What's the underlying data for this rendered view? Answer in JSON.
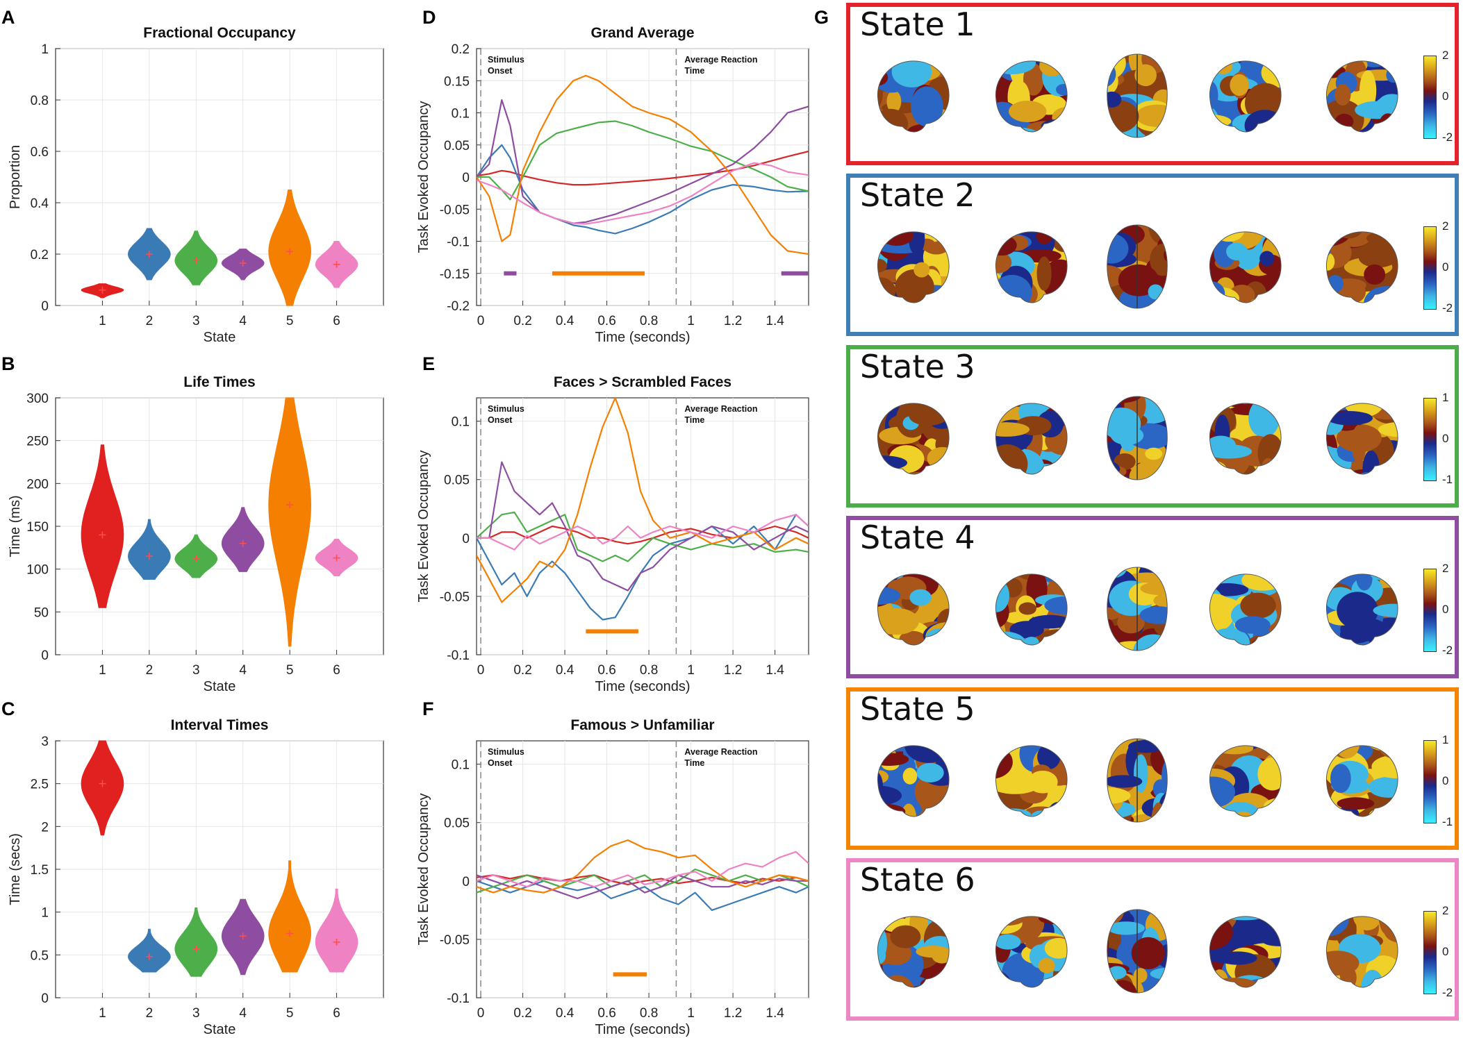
{
  "panel_letters": [
    "A",
    "B",
    "C",
    "D",
    "E",
    "F",
    "G"
  ],
  "chart_data": [
    {
      "id": "A",
      "type": "violin",
      "title": "Fractional Occupancy",
      "xlabel": "State",
      "ylabel": "Proportion",
      "categories": [
        "1",
        "2",
        "3",
        "4",
        "5",
        "6"
      ],
      "ylim": [
        0,
        1
      ],
      "yticks": [
        0,
        0.2,
        0.4,
        0.6,
        0.8,
        1
      ],
      "ytick_labels": [
        "0",
        "0.2",
        "0.4",
        "0.6",
        "0.8",
        "1"
      ],
      "medians": [
        0.06,
        0.2,
        0.175,
        0.165,
        0.21,
        0.16
      ],
      "ranges": [
        [
          0.03,
          0.085
        ],
        [
          0.1,
          0.3
        ],
        [
          0.08,
          0.29
        ],
        [
          0.1,
          0.22
        ],
        [
          0,
          0.45
        ],
        [
          0.07,
          0.25
        ]
      ]
    },
    {
      "id": "B",
      "type": "violin",
      "title": "Life Times",
      "xlabel": "State",
      "ylabel": "Time (ms)",
      "categories": [
        "1",
        "2",
        "3",
        "4",
        "5",
        "6"
      ],
      "ylim": [
        0,
        300
      ],
      "yticks": [
        0,
        50,
        100,
        150,
        200,
        250,
        300
      ],
      "ytick_labels": [
        "0",
        "50",
        "100",
        "150",
        "200",
        "250",
        "300"
      ],
      "medians": [
        140,
        115,
        112,
        130,
        175,
        113
      ],
      "ranges": [
        [
          55,
          245
        ],
        [
          88,
          158
        ],
        [
          90,
          140
        ],
        [
          97,
          172
        ],
        [
          10,
          300
        ],
        [
          92,
          135
        ]
      ]
    },
    {
      "id": "C",
      "type": "violin",
      "title": "Interval Times",
      "xlabel": "State",
      "ylabel": "Time (secs)",
      "categories": [
        "1",
        "2",
        "3",
        "4",
        "5",
        "6"
      ],
      "ylim": [
        0,
        3
      ],
      "yticks": [
        0,
        0.5,
        1,
        1.5,
        2,
        2.5,
        3
      ],
      "ytick_labels": [
        "0",
        "0.5",
        "1",
        "1.5",
        "2",
        "2.5",
        "3"
      ],
      "medians": [
        2.5,
        0.48,
        0.57,
        0.72,
        0.75,
        0.65
      ],
      "ranges": [
        [
          1.9,
          3
        ],
        [
          0.3,
          0.8
        ],
        [
          0.25,
          1.05
        ],
        [
          0.27,
          1.15
        ],
        [
          0.3,
          1.6
        ],
        [
          0.3,
          1.27
        ]
      ]
    },
    {
      "id": "D",
      "type": "line",
      "title": "Grand Average",
      "xlabel": "Time (seconds)",
      "ylabel": "Task Evoked Occupancy",
      "xlim": [
        -0.02,
        1.56
      ],
      "ylim": [
        -0.2,
        0.2
      ],
      "xticks": [
        0,
        0.2,
        0.4,
        0.6,
        0.8,
        1,
        1.2,
        1.4
      ],
      "xtick_labels": [
        "0",
        "0.2",
        "0.4",
        "0.6",
        "0.8",
        "1",
        "1.2",
        "1.4"
      ],
      "yticks": [
        -0.2,
        -0.15,
        -0.1,
        -0.05,
        0,
        0.05,
        0.1,
        0.15,
        0.2
      ],
      "ytick_labels": [
        "-0.2",
        "-0.15",
        "-0.1",
        "-0.05",
        "0",
        "0.05",
        "0.1",
        "0.15",
        "0.2"
      ],
      "vlines": [
        0,
        0.93
      ],
      "annotations": [
        "Stimulus Onset",
        "Average Reaction Time"
      ],
      "x": [
        -0.02,
        0.04,
        0.1,
        0.14,
        0.2,
        0.28,
        0.36,
        0.44,
        0.5,
        0.56,
        0.64,
        0.72,
        0.8,
        0.9,
        1.0,
        1.1,
        1.2,
        1.3,
        1.38,
        1.46,
        1.56
      ],
      "series": [
        {
          "name": "State 1",
          "color": "#d62728",
          "values": [
            0.002,
            0.005,
            0.01,
            0.008,
            0.002,
            -0.004,
            -0.009,
            -0.012,
            -0.012,
            -0.011,
            -0.009,
            -0.007,
            -0.005,
            -0.002,
            0.002,
            0.006,
            0.011,
            0.018,
            0.025,
            0.032,
            0.04
          ]
        },
        {
          "name": "State 2",
          "color": "#3a7bb5",
          "values": [
            0.0,
            0.03,
            0.05,
            0.03,
            -0.02,
            -0.055,
            -0.065,
            -0.075,
            -0.078,
            -0.083,
            -0.088,
            -0.08,
            -0.07,
            -0.055,
            -0.035,
            -0.02,
            -0.012,
            -0.015,
            -0.02,
            -0.023,
            -0.022
          ]
        },
        {
          "name": "State 3",
          "color": "#4daf4a",
          "values": [
            0.0,
            0.0,
            -0.02,
            -0.035,
            0.0,
            0.05,
            0.068,
            0.075,
            0.08,
            0.085,
            0.087,
            0.08,
            0.07,
            0.06,
            0.048,
            0.04,
            0.025,
            0.012,
            0.0,
            -0.015,
            -0.022
          ]
        },
        {
          "name": "State 4",
          "color": "#8e4da0",
          "values": [
            0.0,
            0.02,
            0.12,
            0.08,
            -0.03,
            -0.055,
            -0.065,
            -0.072,
            -0.07,
            -0.065,
            -0.058,
            -0.048,
            -0.038,
            -0.025,
            -0.01,
            0.005,
            0.02,
            0.045,
            0.07,
            0.1,
            0.11
          ]
        },
        {
          "name": "State 5",
          "color": "#f57f00",
          "values": [
            0.0,
            -0.03,
            -0.1,
            -0.09,
            0.01,
            0.07,
            0.12,
            0.15,
            0.158,
            0.15,
            0.13,
            0.11,
            0.1,
            0.09,
            0.07,
            0.04,
            0.0,
            -0.05,
            -0.09,
            -0.115,
            -0.12
          ]
        },
        {
          "name": "State 6",
          "color": "#ee82c3",
          "values": [
            -0.005,
            -0.012,
            -0.02,
            -0.028,
            -0.04,
            -0.055,
            -0.065,
            -0.072,
            -0.073,
            -0.07,
            -0.065,
            -0.06,
            -0.055,
            -0.045,
            -0.03,
            -0.01,
            0.01,
            0.022,
            0.018,
            0.008,
            0.003
          ]
        }
      ],
      "significance": [
        {
          "color": "#8e4da0",
          "from": 0.11,
          "to": 0.17,
          "y": -0.15
        },
        {
          "color": "#f57f00",
          "from": 0.34,
          "to": 0.78,
          "y": -0.15
        },
        {
          "color": "#8e4da0",
          "from": 1.43,
          "to": 1.56,
          "y": -0.15
        }
      ]
    },
    {
      "id": "E",
      "type": "line",
      "title": "Faces > Scrambled Faces",
      "xlabel": "Time (seconds)",
      "ylabel": "Task Evoked Occupancy",
      "xlim": [
        -0.02,
        1.56
      ],
      "ylim": [
        -0.1,
        0.12
      ],
      "xticks": [
        0,
        0.2,
        0.4,
        0.6,
        0.8,
        1,
        1.2,
        1.4
      ],
      "xtick_labels": [
        "0",
        "0.2",
        "0.4",
        "0.6",
        "0.8",
        "1",
        "1.2",
        "1.4"
      ],
      "yticks": [
        -0.1,
        -0.05,
        0,
        0.05,
        0.1
      ],
      "ytick_labels": [
        "-0.1",
        "-0.05",
        "0",
        "0.05",
        "0.1"
      ],
      "vlines": [
        0,
        0.93
      ],
      "annotations": [
        "Stimulus Onset",
        "Average Reaction Time"
      ],
      "x": [
        -0.02,
        0.04,
        0.1,
        0.16,
        0.22,
        0.28,
        0.34,
        0.4,
        0.46,
        0.52,
        0.58,
        0.64,
        0.7,
        0.76,
        0.82,
        0.9,
        1.0,
        1.1,
        1.2,
        1.3,
        1.4,
        1.5,
        1.56
      ],
      "series": [
        {
          "name": "State 1",
          "color": "#d62728",
          "values": [
            0.0,
            0.0,
            0.005,
            0.005,
            0.0,
            0.005,
            0.01,
            0.008,
            0.005,
            0.0,
            0.0,
            -0.003,
            -0.005,
            -0.003,
            0.0,
            0.005,
            0.008,
            0.003,
            0.0,
            0.005,
            0.01,
            0.005,
            0.0
          ]
        },
        {
          "name": "State 2",
          "color": "#3a7bb5",
          "values": [
            0.0,
            -0.02,
            -0.04,
            -0.03,
            -0.05,
            -0.03,
            -0.02,
            -0.03,
            -0.045,
            -0.06,
            -0.07,
            -0.068,
            -0.05,
            -0.03,
            -0.015,
            -0.005,
            0.0,
            0.01,
            -0.005,
            0.01,
            -0.01,
            0.02,
            0.01
          ]
        },
        {
          "name": "State 3",
          "color": "#4daf4a",
          "values": [
            0.0,
            0.01,
            0.02,
            0.022,
            0.005,
            0.01,
            0.015,
            0.02,
            -0.01,
            -0.015,
            -0.02,
            -0.015,
            -0.02,
            -0.01,
            0.0,
            -0.005,
            -0.01,
            -0.005,
            -0.008,
            -0.005,
            -0.012,
            -0.01,
            -0.012
          ]
        },
        {
          "name": "State 4",
          "color": "#8e4da0",
          "values": [
            0.0,
            0.0,
            0.065,
            0.04,
            0.03,
            0.02,
            0.03,
            0.01,
            -0.015,
            -0.02,
            -0.035,
            -0.04,
            -0.045,
            -0.03,
            -0.025,
            -0.01,
            0.0,
            0.01,
            0.005,
            -0.01,
            0.0,
            0.01,
            0.005
          ]
        },
        {
          "name": "State 5",
          "color": "#f57f00",
          "values": [
            -0.015,
            -0.035,
            -0.055,
            -0.045,
            -0.035,
            -0.02,
            -0.025,
            -0.01,
            0.02,
            0.06,
            0.095,
            0.12,
            0.09,
            0.04,
            0.015,
            0.0,
            0.005,
            -0.005,
            0.0,
            0.005,
            -0.01,
            0.0,
            -0.005
          ]
        },
        {
          "name": "State 6",
          "color": "#ee82c3",
          "values": [
            0.0,
            0.0,
            -0.005,
            -0.01,
            0.002,
            -0.005,
            0.0,
            0.005,
            0.01,
            0.005,
            -0.005,
            0.0,
            0.01,
            0.0,
            0.005,
            0.01,
            0.005,
            0.0,
            0.01,
            0.005,
            0.015,
            0.02,
            0.01
          ]
        }
      ],
      "significance": [
        {
          "color": "#f57f00",
          "from": 0.5,
          "to": 0.75,
          "y": -0.08
        }
      ]
    },
    {
      "id": "F",
      "type": "line",
      "title": "Famous > Unfamiliar",
      "xlabel": "Time (seconds)",
      "ylabel": "Task Evoked Occupancy",
      "xlim": [
        -0.02,
        1.56
      ],
      "ylim": [
        -0.1,
        0.12
      ],
      "xticks": [
        0,
        0.2,
        0.4,
        0.6,
        0.8,
        1,
        1.2,
        1.4
      ],
      "xtick_labels": [
        "0",
        "0.2",
        "0.4",
        "0.6",
        "0.8",
        "1",
        "1.2",
        "1.4"
      ],
      "yticks": [
        -0.1,
        -0.05,
        0,
        0.05,
        0.1
      ],
      "ytick_labels": [
        "-0.1",
        "-0.05",
        "0",
        "0.05",
        "0.1"
      ],
      "vlines": [
        0,
        0.93
      ],
      "annotations": [
        "Stimulus Onset",
        "Average Reaction Time"
      ],
      "x": [
        -0.02,
        0.06,
        0.14,
        0.22,
        0.3,
        0.38,
        0.46,
        0.54,
        0.62,
        0.7,
        0.78,
        0.86,
        0.94,
        1.02,
        1.1,
        1.18,
        1.26,
        1.34,
        1.42,
        1.5,
        1.56
      ],
      "series": [
        {
          "name": "State 1",
          "color": "#d62728",
          "values": [
            0.003,
            0.005,
            0.002,
            0.005,
            0.002,
            0.0,
            0.003,
            0.005,
            0.0,
            -0.003,
            0.0,
            0.002,
            -0.002,
            0.0,
            0.003,
            0.0,
            -0.002,
            0.002,
            0.0,
            0.003,
            0.0
          ]
        },
        {
          "name": "State 2",
          "color": "#3a7bb5",
          "values": [
            0.0,
            -0.005,
            -0.01,
            -0.005,
            0.0,
            -0.005,
            -0.008,
            -0.005,
            -0.015,
            -0.01,
            -0.005,
            -0.015,
            -0.02,
            -0.01,
            -0.025,
            -0.02,
            -0.015,
            -0.01,
            -0.005,
            -0.01,
            -0.005
          ]
        },
        {
          "name": "State 3",
          "color": "#4daf4a",
          "values": [
            -0.01,
            -0.005,
            0.0,
            0.005,
            0.0,
            -0.005,
            0.0,
            0.005,
            -0.005,
            0.0,
            0.005,
            -0.005,
            0.0,
            0.01,
            0.005,
            0.0,
            0.005,
            0.0,
            0.005,
            0.0,
            -0.005
          ]
        },
        {
          "name": "State 4",
          "color": "#8e4da0",
          "values": [
            0.005,
            0.0,
            -0.005,
            0.0,
            -0.005,
            -0.01,
            -0.015,
            -0.01,
            -0.005,
            0.0,
            -0.01,
            -0.005,
            0.005,
            0.0,
            -0.005,
            -0.005,
            0.0,
            -0.003,
            0.002,
            0.0,
            0.0
          ]
        },
        {
          "name": "State 5",
          "color": "#f57f00",
          "values": [
            -0.005,
            -0.01,
            -0.005,
            -0.008,
            -0.01,
            -0.005,
            0.005,
            0.02,
            0.03,
            0.035,
            0.028,
            0.025,
            0.02,
            0.022,
            0.01,
            0.0,
            -0.005,
            0.0,
            0.005,
            0.003,
            0.0
          ]
        },
        {
          "name": "State 6",
          "color": "#ee82c3",
          "values": [
            0.0,
            0.005,
            0.0,
            -0.005,
            0.003,
            0.0,
            0.0,
            -0.005,
            0.0,
            0.005,
            -0.003,
            0.0,
            0.005,
            0.008,
            0.0,
            0.01,
            0.015,
            0.012,
            0.02,
            0.025,
            0.015
          ]
        }
      ],
      "significance": [
        {
          "color": "#f57f00",
          "from": 0.63,
          "to": 0.79,
          "y": -0.08
        }
      ]
    }
  ],
  "states_panel": [
    {
      "title": "State 1",
      "color": "#e3232b",
      "colorbar": [
        "2",
        "0",
        "-2"
      ],
      "views": [
        "lateral-left",
        "lateral-right",
        "dorsal",
        "medial-left",
        "medial-right"
      ]
    },
    {
      "title": "State 2",
      "color": "#3f7fb5",
      "colorbar": [
        "2",
        "0",
        "-2"
      ],
      "views": [
        "lateral-left",
        "lateral-right",
        "dorsal",
        "medial-left",
        "medial-right"
      ]
    },
    {
      "title": "State 3",
      "color": "#4aad4a",
      "colorbar": [
        "1",
        "0",
        "-1"
      ],
      "views": [
        "lateral-left",
        "lateral-right",
        "dorsal",
        "medial-left",
        "medial-right"
      ]
    },
    {
      "title": "State 4",
      "color": "#8e4da0",
      "colorbar": [
        "2",
        "0",
        "-2"
      ],
      "views": [
        "lateral-left",
        "lateral-right",
        "dorsal",
        "medial-left",
        "medial-right"
      ]
    },
    {
      "title": "State 5",
      "color": "#f58400",
      "colorbar": [
        "1",
        "0",
        "-1"
      ],
      "views": [
        "lateral-left",
        "lateral-right",
        "dorsal",
        "medial-left",
        "medial-right"
      ]
    },
    {
      "title": "State 6",
      "color": "#ec86c4",
      "colorbar": [
        "2",
        "0",
        "-2"
      ],
      "views": [
        "lateral-left",
        "lateral-right",
        "dorsal",
        "medial-left",
        "medial-right"
      ]
    }
  ]
}
